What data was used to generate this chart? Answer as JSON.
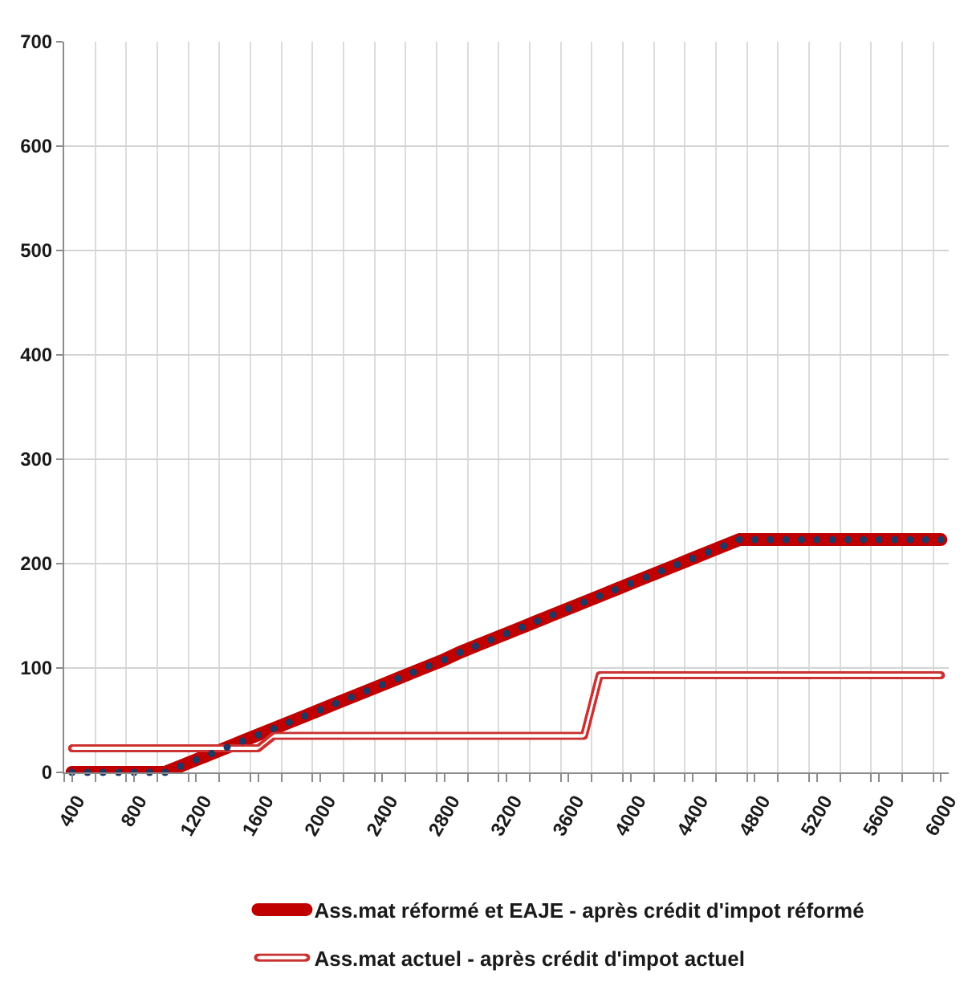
{
  "chart_data": {
    "type": "line",
    "x": [
      400,
      500,
      600,
      700,
      800,
      900,
      1000,
      1100,
      1200,
      1300,
      1400,
      1500,
      1600,
      1700,
      1800,
      1900,
      2000,
      2100,
      2200,
      2300,
      2400,
      2500,
      2600,
      2700,
      2800,
      2900,
      3000,
      3100,
      3200,
      3300,
      3400,
      3500,
      3600,
      3700,
      3800,
      3900,
      4000,
      4100,
      4200,
      4300,
      4400,
      4500,
      4600,
      4700,
      4800,
      4900,
      5000,
      5100,
      5200,
      5300,
      5400,
      5500,
      5600,
      5700,
      5800,
      5900,
      6000
    ],
    "series": [
      {
        "name": "Ass.mat réformé et EAJE - après crédit d'impot réformé",
        "color": "#c00000",
        "values": [
          0,
          0,
          0,
          0,
          0,
          0,
          0,
          6,
          12,
          18,
          24,
          30,
          36,
          42,
          48,
          54,
          60,
          66,
          72,
          78,
          84,
          90,
          96,
          102,
          108,
          115,
          121,
          127,
          133,
          139,
          145,
          151,
          157,
          163,
          169,
          175,
          181,
          187,
          193,
          199,
          205,
          211,
          217,
          223,
          223,
          223,
          223,
          223,
          223,
          223,
          223,
          223,
          223,
          223,
          223,
          223,
          223
        ]
      },
      {
        "name": "Ass.mat actuel - après crédit d'impot actuel",
        "color": "#cc3333",
        "values": [
          23,
          23,
          23,
          23,
          23,
          23,
          23,
          23,
          23,
          23,
          23,
          23,
          23,
          35,
          35,
          35,
          35,
          35,
          35,
          35,
          35,
          35,
          35,
          35,
          35,
          35,
          35,
          35,
          35,
          35,
          35,
          35,
          35,
          35,
          93,
          93,
          93,
          93,
          93,
          93,
          93,
          93,
          93,
          93,
          93,
          93,
          93,
          93,
          93,
          93,
          93,
          93,
          93,
          93,
          93,
          93,
          93
        ]
      },
      {
        "type": "scatter",
        "color": "#1f3864",
        "marker": "circle",
        "values": [
          0,
          0,
          0,
          0,
          0,
          0,
          0,
          6,
          12,
          18,
          24,
          30,
          36,
          42,
          48,
          54,
          60,
          66,
          72,
          78,
          84,
          90,
          96,
          102,
          108,
          115,
          121,
          127,
          133,
          139,
          145,
          151,
          157,
          163,
          169,
          175,
          181,
          187,
          193,
          199,
          205,
          211,
          217,
          223,
          223,
          223,
          223,
          223,
          223,
          223,
          223,
          223,
          223,
          223,
          223,
          223,
          223
        ]
      }
    ],
    "xlim": [
      350,
      6050
    ],
    "xticks": [
      {
        "value": 350,
        "label": null
      },
      400,
      {
        "value": 550,
        "label": null
      },
      {
        "value": 750,
        "label": null
      },
      800,
      {
        "value": 950,
        "label": null
      },
      {
        "value": 1150,
        "label": null
      },
      1200,
      {
        "value": 1350,
        "label": null
      },
      {
        "value": 1550,
        "label": null
      },
      1600,
      {
        "value": 1750,
        "label": null
      },
      {
        "value": 1950,
        "label": null
      },
      2000,
      {
        "value": 2150,
        "label": null
      },
      {
        "value": 2350,
        "label": null
      },
      2400,
      {
        "value": 2550,
        "label": null
      },
      {
        "value": 2750,
        "label": null
      },
      2800,
      {
        "value": 2950,
        "label": null
      },
      {
        "value": 3150,
        "label": null
      },
      3200,
      {
        "value": 3350,
        "label": null
      },
      {
        "value": 3550,
        "label": null
      },
      3600,
      {
        "value": 3750,
        "label": null
      },
      {
        "value": 3950,
        "label": null
      },
      4000,
      {
        "value": 4150,
        "label": null
      },
      {
        "value": 4350,
        "label": null
      },
      4400,
      {
        "value": 4550,
        "label": null
      },
      {
        "value": 4750,
        "label": null
      },
      4800,
      {
        "value": 4950,
        "label": null
      },
      {
        "value": 5150,
        "label": null
      },
      5200,
      {
        "value": 5350,
        "label": null
      },
      {
        "value": 5550,
        "label": null
      },
      5600,
      {
        "value": 5750,
        "label": null
      },
      {
        "value": 5950,
        "label": null
      },
      6000
    ],
    "ylim": [
      0,
      700
    ],
    "yticks": [
      0,
      100,
      200,
      300,
      400,
      500,
      600,
      700
    ],
    "grid": true,
    "legend": "bottom"
  }
}
